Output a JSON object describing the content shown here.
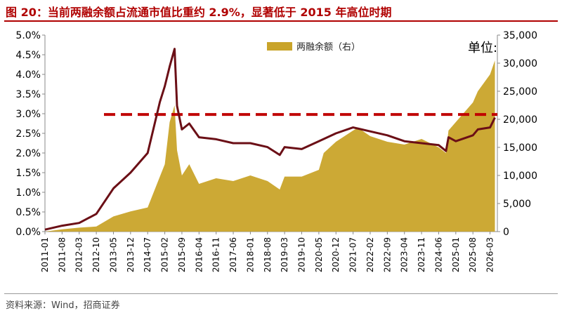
{
  "title": "图 20：当前两融余额占流通市值比重约 2.9%，显著低于 2015 年高位时期",
  "source": "资料来源：Wind，招商证券",
  "unit_label": "单位:",
  "legend_label": "两融余额（右）",
  "colors": {
    "title": "#b00000",
    "balance_area": "#c9a42a",
    "ratio_line": "#6b0f16",
    "reference_line": "#c00000"
  },
  "chart_data": {
    "type": "area",
    "x_tick_labels": [
      "2011-01",
      "2011-08",
      "2012-03",
      "2012-10",
      "2013-05",
      "2013-12",
      "2014-07",
      "2015-02",
      "2015-09",
      "2016-04",
      "2016-11",
      "2017-06",
      "2018-01",
      "2018-08",
      "2019-03",
      "2019-10",
      "2020-05",
      "2020-12",
      "2021-07",
      "2022-02",
      "2022-09",
      "2023-04",
      "2023-11",
      "2024-06",
      "2025-01",
      "2025-08",
      "2026-03"
    ],
    "y_left_ticks": [
      "0.0%",
      "0.5%",
      "1.0%",
      "1.5%",
      "2.0%",
      "2.5%",
      "3.0%",
      "3.5%",
      "4.0%",
      "4.5%",
      "5.0%"
    ],
    "y_left_range": [
      0,
      5.0
    ],
    "y_right_ticks": [
      "0",
      "5,000",
      "10,000",
      "15,000",
      "20,000",
      "25,000",
      "30,000",
      "35,000"
    ],
    "y_right_range": [
      0,
      35000
    ],
    "reference_line_ratio": 2.98,
    "series": [
      {
        "name": "两融余额（右）",
        "axis": "right",
        "type": "area",
        "x": [
          "2011-01",
          "2011-08",
          "2012-03",
          "2012-10",
          "2013-05",
          "2013-12",
          "2014-07",
          "2014-12",
          "2015-02",
          "2015-04",
          "2015-06",
          "2015-07",
          "2015-09",
          "2015-12",
          "2016-04",
          "2016-11",
          "2017-06",
          "2018-01",
          "2018-08",
          "2019-01",
          "2019-03",
          "2019-10",
          "2020-05",
          "2020-07",
          "2020-12",
          "2021-07",
          "2021-09",
          "2022-02",
          "2022-09",
          "2023-04",
          "2023-11",
          "2024-06",
          "2024-09",
          "2024-10",
          "2025-01",
          "2025-08",
          "2025-10",
          "2026-03",
          "2026-05"
        ],
        "values": [
          0,
          400,
          700,
          900,
          2700,
          3600,
          4300,
          9800,
          12000,
          19500,
          22500,
          14500,
          10000,
          12000,
          8500,
          9500,
          9000,
          10000,
          9000,
          7500,
          9800,
          9800,
          11000,
          14000,
          16000,
          18000,
          18500,
          17000,
          16000,
          15500,
          16500,
          15000,
          14000,
          18000,
          19500,
          23000,
          25000,
          28000,
          30500
        ]
      },
      {
        "name": "",
        "axis": "left",
        "type": "line",
        "x": [
          "2011-01",
          "2011-08",
          "2012-03",
          "2012-10",
          "2013-05",
          "2013-12",
          "2014-07",
          "2014-12",
          "2015-02",
          "2015-04",
          "2015-06",
          "2015-07",
          "2015-09",
          "2015-12",
          "2016-04",
          "2016-11",
          "2017-06",
          "2018-01",
          "2018-08",
          "2019-01",
          "2019-03",
          "2019-10",
          "2020-05",
          "2020-12",
          "2021-07",
          "2022-02",
          "2022-09",
          "2023-04",
          "2023-11",
          "2024-06",
          "2024-09",
          "2024-10",
          "2025-01",
          "2025-08",
          "2025-10",
          "2026-03",
          "2026-05"
        ],
        "values": [
          0.05,
          0.15,
          0.22,
          0.45,
          1.1,
          1.5,
          2.0,
          3.3,
          3.7,
          4.2,
          4.65,
          3.2,
          2.6,
          2.75,
          2.4,
          2.35,
          2.25,
          2.25,
          2.15,
          1.95,
          2.15,
          2.1,
          2.3,
          2.5,
          2.65,
          2.55,
          2.45,
          2.3,
          2.25,
          2.2,
          2.05,
          2.4,
          2.3,
          2.45,
          2.6,
          2.65,
          2.9
        ]
      }
    ]
  }
}
